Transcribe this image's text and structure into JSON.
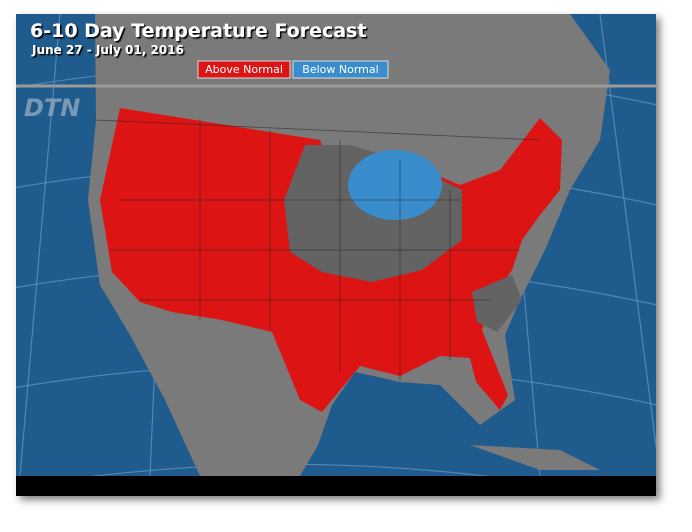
{
  "header": {
    "title": "6-10 Day Temperature Forecast",
    "subtitle": "June 27 - July 01, 2016"
  },
  "legend": {
    "items": [
      {
        "label": "Above Normal",
        "color": "#dd1414"
      },
      {
        "label": "Below Normal",
        "color": "#3a8dcc"
      }
    ]
  },
  "logo": "DTN"
}
